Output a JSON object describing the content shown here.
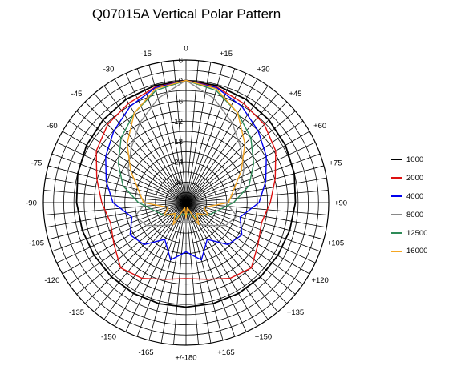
{
  "chart_data": {
    "type": "polar",
    "title": "Q07015A Vertical Polar Pattern",
    "radial_axis": {
      "unit": "dB",
      "max": 6,
      "min": -36,
      "step": 3,
      "labels": [
        "6",
        "0",
        "-6",
        "-12",
        "-18",
        "-24",
        "-30"
      ]
    },
    "angle_axis": {
      "step_degrees": 5,
      "labels": [
        "0",
        "+15",
        "+30",
        "+45",
        "+60",
        "+75",
        "+90",
        "+105",
        "+120",
        "+135",
        "+150",
        "+165",
        "+/-180",
        "-165",
        "-150",
        "-135",
        "-120",
        "-105",
        "-90",
        "-75",
        "-60",
        "-45",
        "-30",
        "-15"
      ]
    },
    "grid": true,
    "legend_position": "right",
    "angles": [
      0,
      15,
      30,
      45,
      60,
      75,
      90,
      105,
      120,
      135,
      150,
      165,
      180
    ],
    "series": [
      {
        "name": "1000",
        "color": "#000000",
        "values": [
          0,
          -0.3,
          -0.8,
          -1.5,
          -2.2,
          -3,
          -3.8,
          -4.4,
          -4.8,
          -5,
          -5.1,
          -5.2,
          -5.2
        ]
      },
      {
        "name": "2000",
        "color": "#dd1111",
        "values": [
          0,
          -0.8,
          -2.2,
          -3.4,
          -5.5,
          -8.8,
          -11.2,
          -13,
          -11.5,
          -8.8,
          -10.2,
          -12.6,
          -13.6
        ]
      },
      {
        "name": "4000",
        "color": "#0000ee",
        "values": [
          0,
          -1,
          -3.2,
          -6,
          -8.7,
          -11.7,
          -14.5,
          -19.5,
          -17,
          -18.5,
          -23.5,
          -18.5,
          -21.5
        ]
      },
      {
        "name": "8000",
        "color": "#888888",
        "values": [
          0,
          -4.2,
          -8.8,
          -13.2,
          -16.3,
          -19.5,
          -24.2,
          -20.5,
          -22.5,
          -26.5,
          -28.5,
          -30,
          -30
        ]
      },
      {
        "name": "12500",
        "color": "#2e8b57",
        "values": [
          0,
          -1.8,
          -5.5,
          -9,
          -13,
          -16.8,
          -22,
          -26.5,
          -28.5,
          -31,
          -31,
          -32.5,
          -32.5
        ]
      },
      {
        "name": "16000",
        "color": "#f5a623",
        "values": [
          0,
          -1.3,
          -5.5,
          -11.5,
          -17.2,
          -21.5,
          -23.5,
          -30.5,
          -28.5,
          -31.5,
          -28.5,
          -34.5,
          -31.5
        ]
      }
    ]
  }
}
